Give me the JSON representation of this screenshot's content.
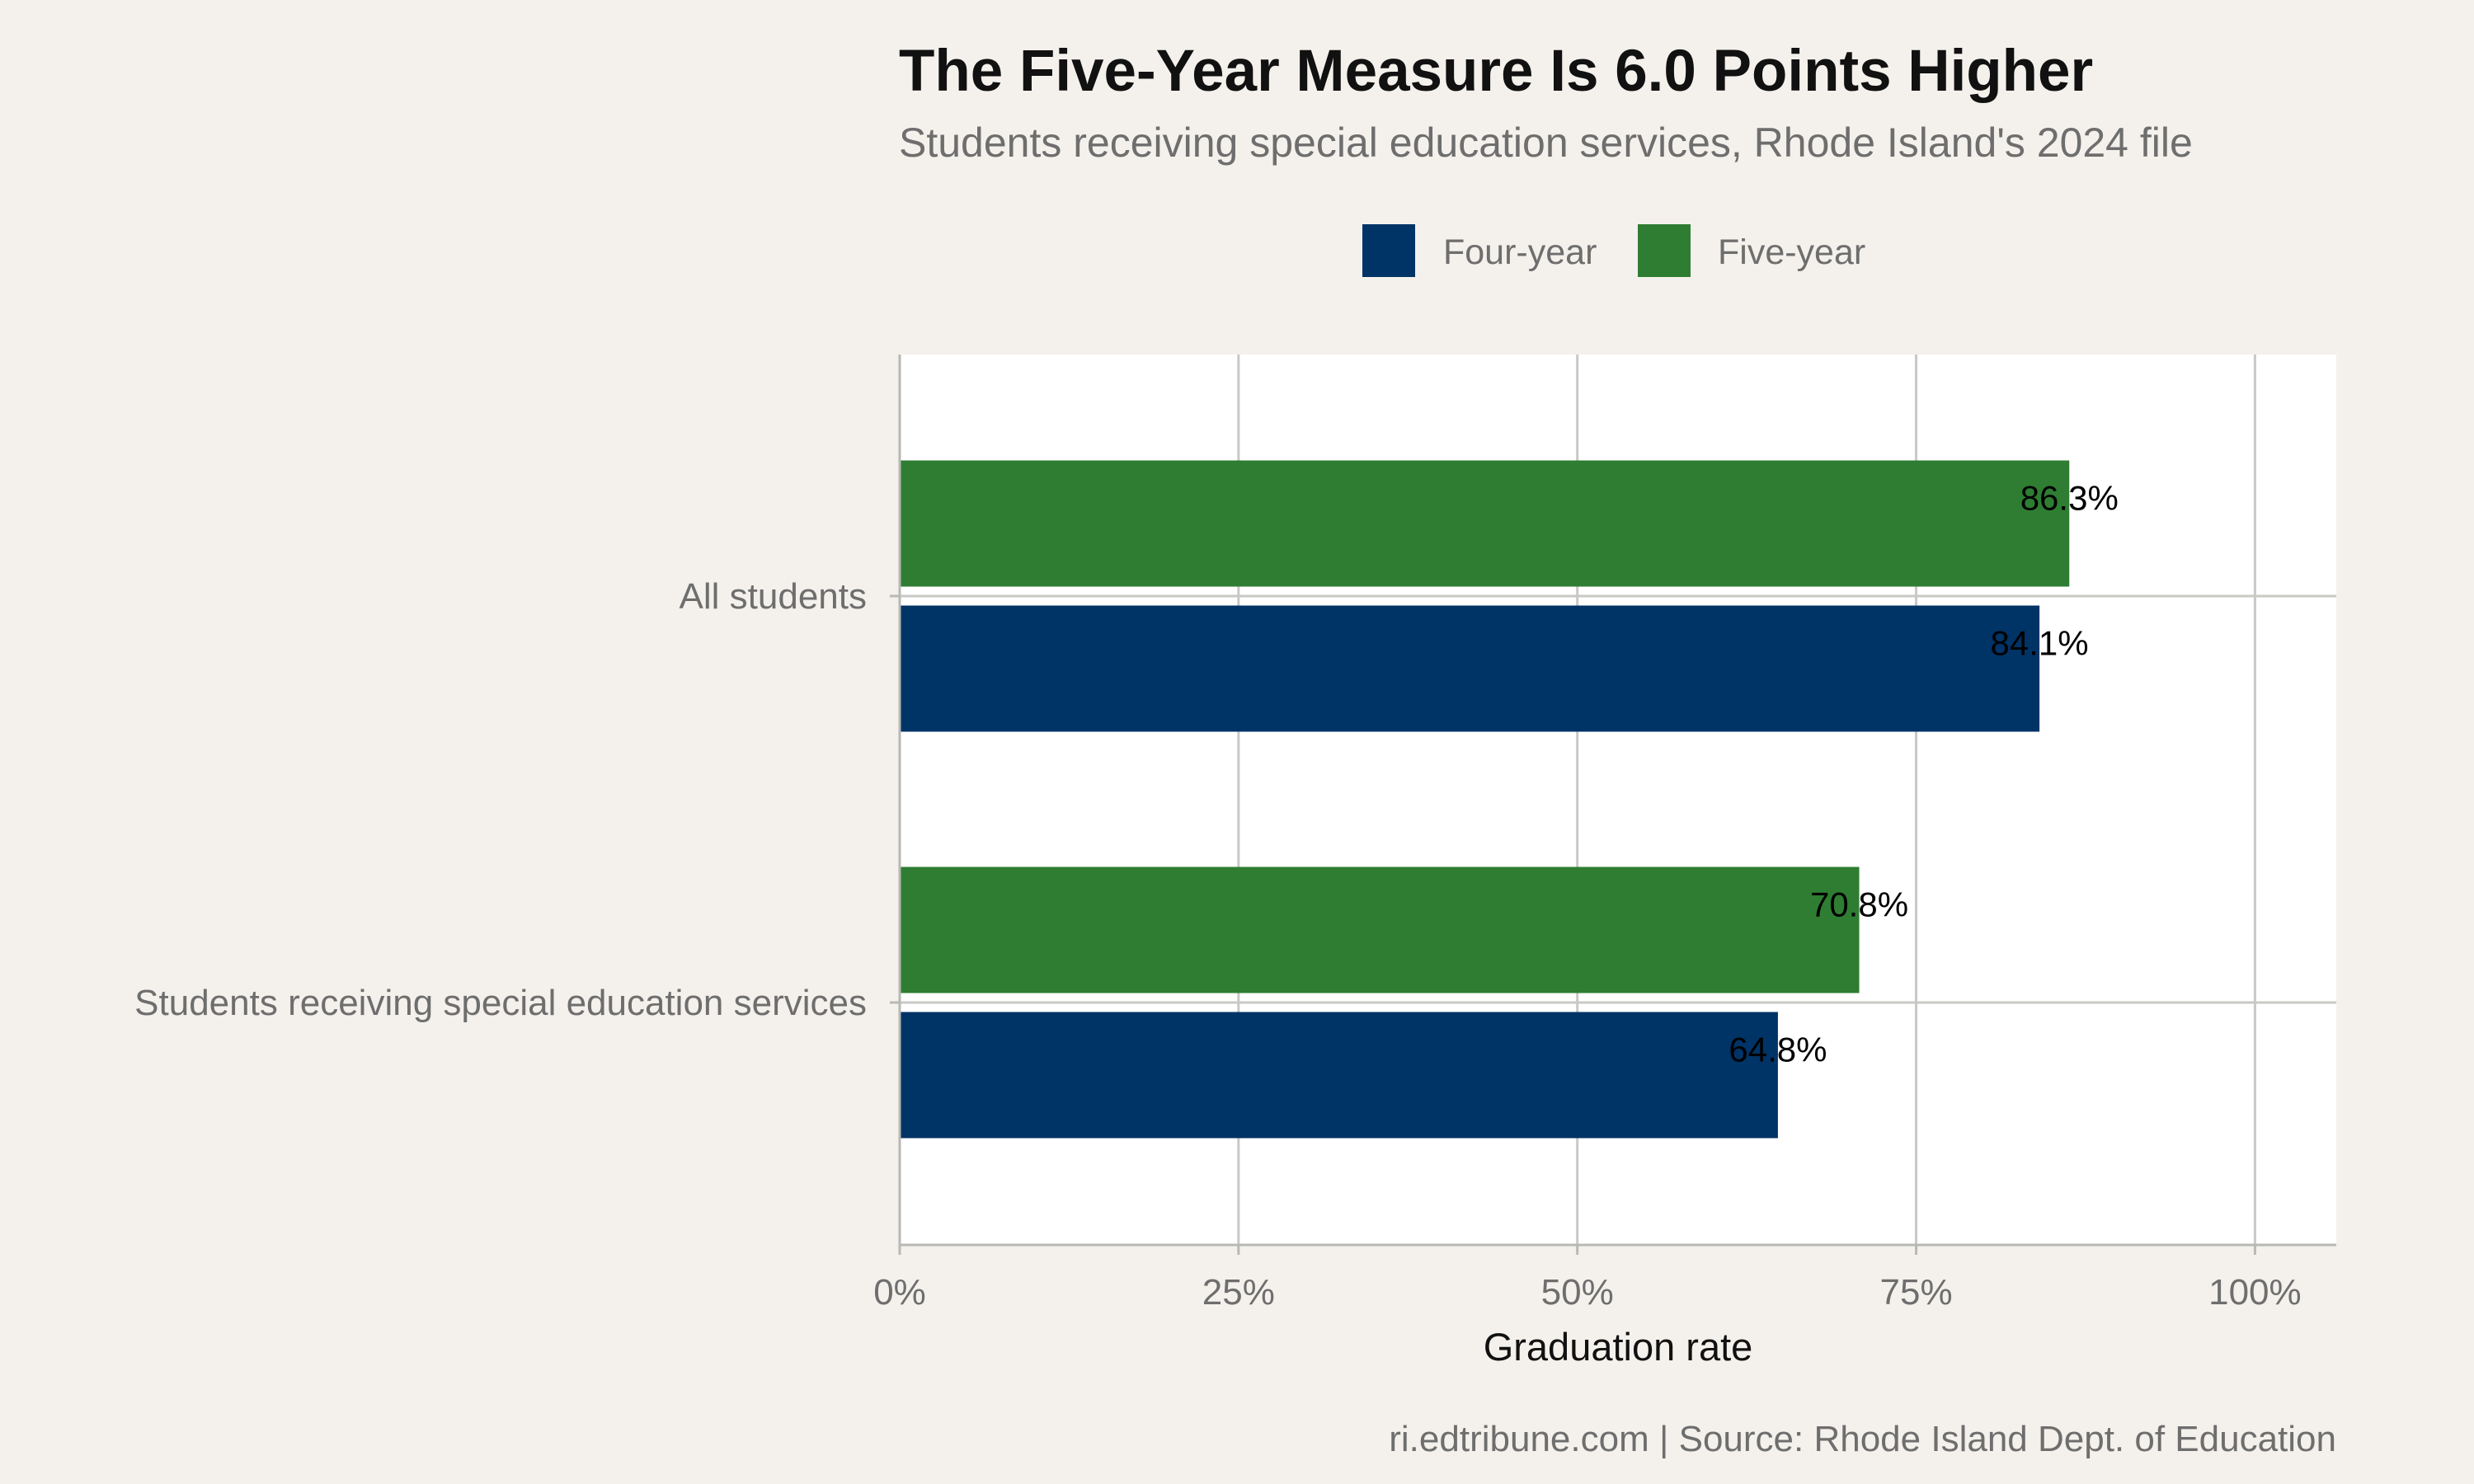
{
  "chart_data": {
    "type": "bar",
    "orientation": "horizontal",
    "title": "The Five-Year Measure Is 6.0 Points Higher",
    "subtitle": "Students receiving special education services, Rhode Island's 2024 file",
    "categories": [
      "All students",
      "Students receiving special education services"
    ],
    "series": [
      {
        "name": "Four-year",
        "color": "#003366",
        "values": [
          84.1,
          64.8
        ],
        "labels": [
          "84.1%",
          "64.8%"
        ]
      },
      {
        "name": "Five-year",
        "color": "#2e7d32",
        "values": [
          86.3,
          70.8
        ],
        "labels": [
          "86.3%",
          "70.8%"
        ]
      }
    ],
    "xlabel": "Graduation rate",
    "ylabel": "",
    "xlim": [
      0,
      106
    ],
    "xticks": [
      0,
      25,
      50,
      75,
      100
    ],
    "xtick_labels": [
      "0%",
      "25%",
      "50%",
      "75%",
      "100%"
    ],
    "grid": true,
    "legend_position": "top",
    "caption": "ri.edtribune.com | Source: Rhode Island Dept. of Education"
  }
}
